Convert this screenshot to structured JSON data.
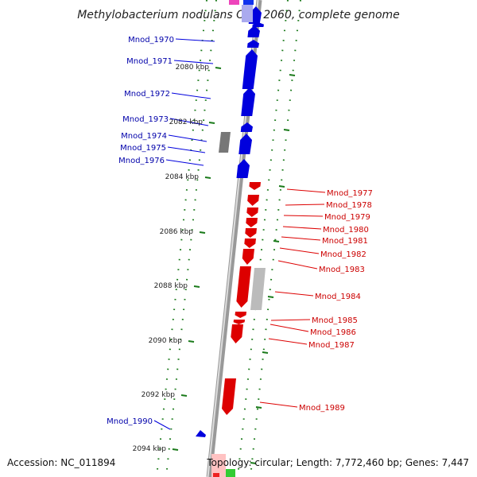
{
  "title": "Methylobacterium nodulans ORS 2060, complete genome",
  "footer": {
    "accession": "Accession: NC_011894",
    "summary": "Topology: circular; Length: 7,772,460 bp; Genes: 7,447"
  },
  "scale_labels": [
    "2080 kbp",
    "2082 kbp",
    "2084 kbp",
    "2086 kbp",
    "2088 kbp",
    "2090 kbp",
    "2092 kbp",
    "2094 kbp"
  ],
  "colors": {
    "forward": "#0000dd",
    "reverse": "#dd0000",
    "forward_label": "#0000aa",
    "reverse_label": "#cc0000",
    "pseudo": "#777777",
    "tick": "#1a7a1a",
    "backbone": "#888888"
  },
  "genes_forward": [
    {
      "label": "Mnod_1970"
    },
    {
      "label": "Mnod_1971"
    },
    {
      "label": "Mnod_1972"
    },
    {
      "label": "Mnod_1973"
    },
    {
      "label": "Mnod_1974"
    },
    {
      "label": "Mnod_1975"
    },
    {
      "label": "Mnod_1976"
    },
    {
      "label": "Mnod_1990"
    }
  ],
  "genes_reverse": [
    {
      "label": "Mnod_1977"
    },
    {
      "label": "Mnod_1978"
    },
    {
      "label": "Mnod_1979"
    },
    {
      "label": "Mnod_1980"
    },
    {
      "label": "Mnod_1981"
    },
    {
      "label": "Mnod_1982"
    },
    {
      "label": "Mnod_1983"
    },
    {
      "label": "Mnod_1984"
    },
    {
      "label": "Mnod_1985"
    },
    {
      "label": "Mnod_1986"
    },
    {
      "label": "Mnod_1987"
    },
    {
      "label": "Mnod_1989"
    }
  ]
}
